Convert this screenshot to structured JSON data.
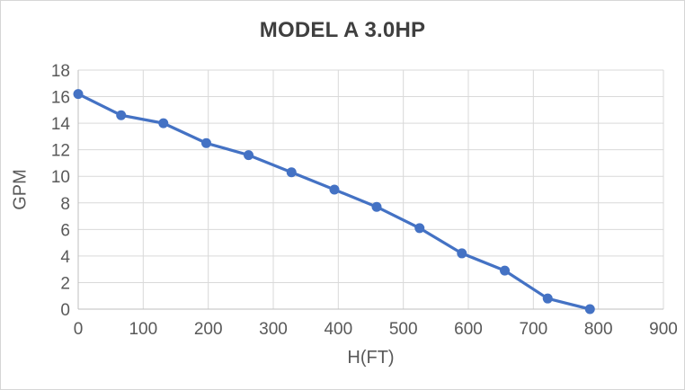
{
  "chart_data": {
    "type": "line",
    "title": "MODEL A 3.0HP",
    "xlabel": "H(FT)",
    "ylabel": "GPM",
    "x": [
      0,
      66,
      131,
      197,
      262,
      328,
      394,
      459,
      525,
      590,
      656,
      722,
      787
    ],
    "y": [
      16.2,
      14.6,
      14.0,
      12.5,
      11.6,
      10.3,
      9.0,
      7.7,
      6.1,
      4.2,
      2.9,
      0.8,
      0
    ],
    "xlim": [
      0,
      900
    ],
    "ylim": [
      0,
      18
    ],
    "xtick_step": 100,
    "ytick_step": 2,
    "grid": true,
    "legend": "none",
    "marker": "circle",
    "colors": {
      "line": "#4472C4",
      "marker": "#4472C4",
      "title_text": "#3F3F3F",
      "tick_text": "#595959",
      "axis_title_text": "#595959",
      "gridline": "#D9D9D9",
      "axis_line": "#BFBFBF",
      "background": "#FFFFFF",
      "border": "#D6D6D6"
    }
  }
}
